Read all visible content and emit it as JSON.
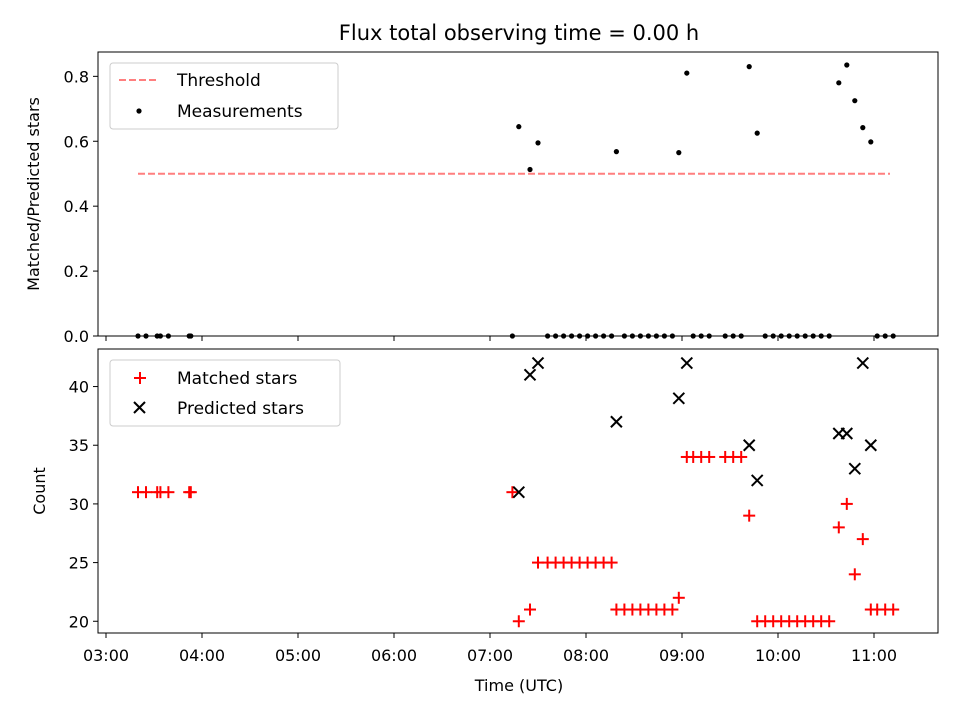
{
  "chart_data": {
    "type": "scatter",
    "title": "Flux total observing time = 0.00 h",
    "xlabel": "Time (UTC)",
    "x_unit": "UTC time of day",
    "xlim": [
      "02:55",
      "11:40"
    ],
    "xticks": [
      "03:00",
      "04:00",
      "05:00",
      "06:00",
      "07:00",
      "08:00",
      "09:00",
      "10:00",
      "11:00"
    ],
    "shared_x": true,
    "panels": [
      {
        "name": "top",
        "ylabel": "Matched/Predicted stars",
        "ylim": [
          0,
          0.875
        ],
        "yticks": [
          "0.0",
          "0.2",
          "0.4",
          "0.6",
          "0.8"
        ],
        "legend_position": "top-left",
        "series": [
          {
            "name": "Threshold",
            "style": "dashed-line",
            "color": "#ff7f7f",
            "points": [
              [
                "03:20",
                0.5
              ],
              [
                "11:10",
                0.5
              ]
            ]
          },
          {
            "name": "Measurements",
            "style": "dot",
            "color": "#000000",
            "points": [
              [
                "03:20",
                0
              ],
              [
                "03:25",
                0
              ],
              [
                "03:32",
                0
              ],
              [
                "03:34",
                0
              ],
              [
                "03:39",
                0
              ],
              [
                "03:52",
                0
              ],
              [
                "03:53",
                0
              ],
              [
                "07:14",
                0
              ],
              [
                "07:18",
                0.645
              ],
              [
                "07:25",
                0.513
              ],
              [
                "07:30",
                0.595
              ],
              [
                "07:36",
                0
              ],
              [
                "07:41",
                0
              ],
              [
                "07:46",
                0
              ],
              [
                "07:51",
                0
              ],
              [
                "07:56",
                0
              ],
              [
                "08:01",
                0
              ],
              [
                "08:06",
                0
              ],
              [
                "08:11",
                0
              ],
              [
                "08:16",
                0
              ],
              [
                "08:19",
                0.568
              ],
              [
                "08:24",
                0
              ],
              [
                "08:29",
                0
              ],
              [
                "08:34",
                0
              ],
              [
                "08:39",
                0
              ],
              [
                "08:44",
                0
              ],
              [
                "08:49",
                0
              ],
              [
                "08:54",
                0
              ],
              [
                "08:58",
                0.565
              ],
              [
                "09:03",
                0.81
              ],
              [
                "09:07",
                0
              ],
              [
                "09:12",
                0
              ],
              [
                "09:17",
                0
              ],
              [
                "09:27",
                0
              ],
              [
                "09:32",
                0
              ],
              [
                "09:37",
                0
              ],
              [
                "09:42",
                0.83
              ],
              [
                "09:47",
                0.625
              ],
              [
                "09:52",
                0
              ],
              [
                "09:57",
                0
              ],
              [
                "10:02",
                0
              ],
              [
                "10:07",
                0
              ],
              [
                "10:12",
                0
              ],
              [
                "10:17",
                0
              ],
              [
                "10:22",
                0
              ],
              [
                "10:27",
                0
              ],
              [
                "10:32",
                0
              ],
              [
                "10:38",
                0.78
              ],
              [
                "10:43",
                0.835
              ],
              [
                "10:48",
                0.725
              ],
              [
                "10:53",
                0.642
              ],
              [
                "10:58",
                0.598
              ],
              [
                "11:02",
                0
              ],
              [
                "11:07",
                0
              ],
              [
                "11:12",
                0
              ]
            ]
          }
        ]
      },
      {
        "name": "bottom",
        "ylabel": "Count",
        "ylim": [
          19,
          43.2
        ],
        "yticks": [
          "20",
          "25",
          "30",
          "35",
          "40"
        ],
        "legend_position": "top-left",
        "series": [
          {
            "name": "Matched stars",
            "style": "plus",
            "color": "#ff0000",
            "points": [
              [
                "03:20",
                31
              ],
              [
                "03:25",
                31
              ],
              [
                "03:32",
                31
              ],
              [
                "03:34",
                31
              ],
              [
                "03:39",
                31
              ],
              [
                "03:52",
                31
              ],
              [
                "03:53",
                31
              ],
              [
                "07:14",
                31
              ],
              [
                "07:18",
                20
              ],
              [
                "07:25",
                21
              ],
              [
                "07:30",
                25
              ],
              [
                "07:36",
                25
              ],
              [
                "07:41",
                25
              ],
              [
                "07:46",
                25
              ],
              [
                "07:51",
                25
              ],
              [
                "07:56",
                25
              ],
              [
                "08:01",
                25
              ],
              [
                "08:06",
                25
              ],
              [
                "08:11",
                25
              ],
              [
                "08:16",
                25
              ],
              [
                "08:19",
                21
              ],
              [
                "08:24",
                21
              ],
              [
                "08:29",
                21
              ],
              [
                "08:34",
                21
              ],
              [
                "08:39",
                21
              ],
              [
                "08:44",
                21
              ],
              [
                "08:49",
                21
              ],
              [
                "08:54",
                21
              ],
              [
                "08:58",
                22
              ],
              [
                "09:03",
                34
              ],
              [
                "09:07",
                34
              ],
              [
                "09:12",
                34
              ],
              [
                "09:17",
                34
              ],
              [
                "09:27",
                34
              ],
              [
                "09:32",
                34
              ],
              [
                "09:37",
                34
              ],
              [
                "09:42",
                29
              ],
              [
                "09:47",
                20
              ],
              [
                "09:52",
                20
              ],
              [
                "09:57",
                20
              ],
              [
                "10:02",
                20
              ],
              [
                "10:07",
                20
              ],
              [
                "10:12",
                20
              ],
              [
                "10:17",
                20
              ],
              [
                "10:22",
                20
              ],
              [
                "10:27",
                20
              ],
              [
                "10:32",
                20
              ],
              [
                "10:38",
                28
              ],
              [
                "10:43",
                30
              ],
              [
                "10:48",
                24
              ],
              [
                "10:53",
                27
              ],
              [
                "10:58",
                21
              ],
              [
                "11:02",
                21
              ],
              [
                "11:07",
                21
              ],
              [
                "11:12",
                21
              ]
            ]
          },
          {
            "name": "Predicted stars",
            "style": "x",
            "color": "#000000",
            "points": [
              [
                "07:18",
                31
              ],
              [
                "07:25",
                41
              ],
              [
                "07:30",
                42
              ],
              [
                "08:19",
                37
              ],
              [
                "08:58",
                39
              ],
              [
                "09:03",
                42
              ],
              [
                "09:42",
                35
              ],
              [
                "09:47",
                32
              ],
              [
                "10:38",
                36
              ],
              [
                "10:43",
                36
              ],
              [
                "10:48",
                33
              ],
              [
                "10:53",
                42
              ],
              [
                "10:58",
                35
              ]
            ]
          }
        ]
      }
    ]
  }
}
